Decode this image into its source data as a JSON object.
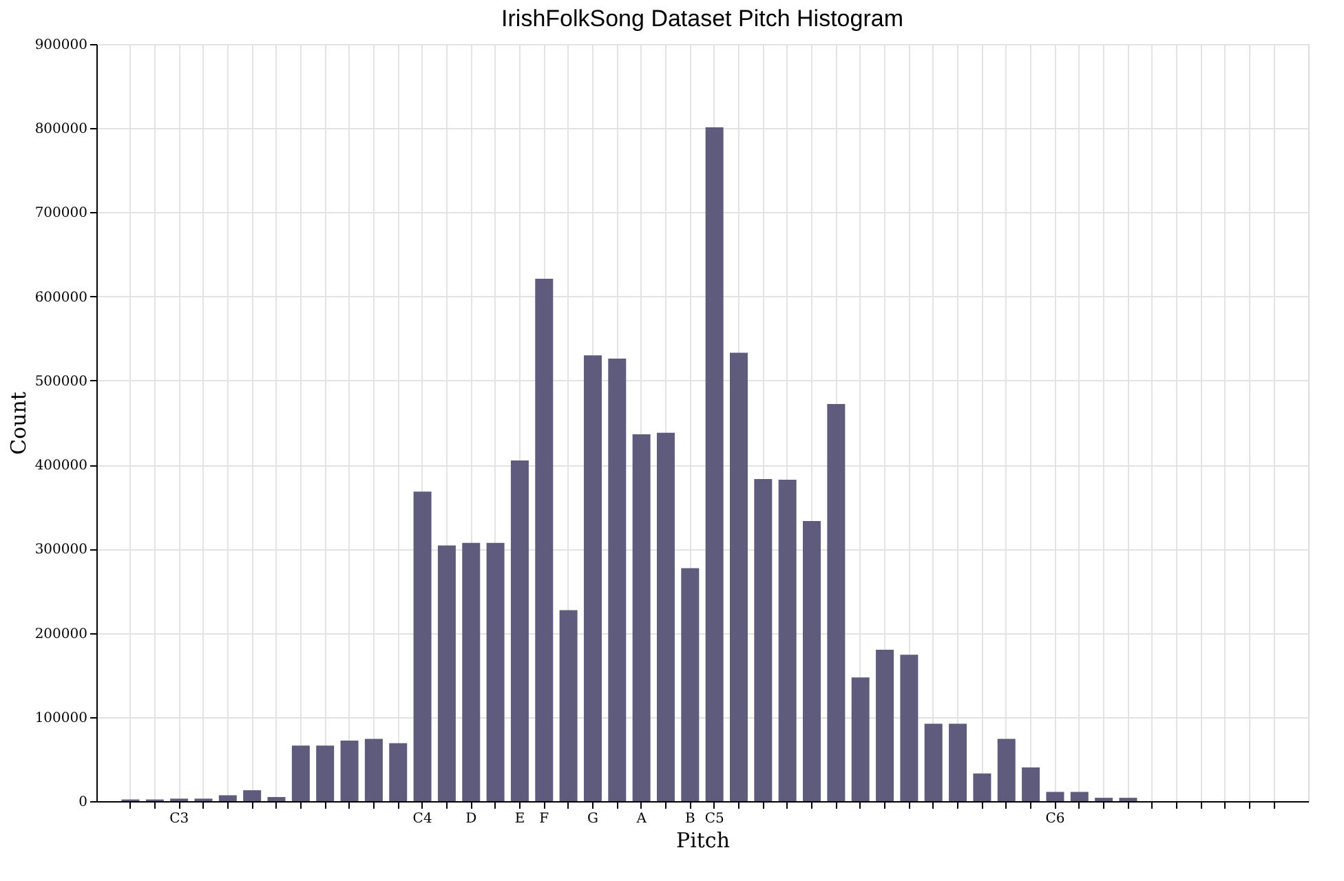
{
  "chart_data": {
    "type": "bar",
    "title": "IrishFolkSong Dataset Pitch Histogram",
    "xlabel": "Pitch",
    "ylabel": "Count",
    "categories": [
      null,
      null,
      "C3",
      null,
      null,
      null,
      null,
      null,
      null,
      null,
      null,
      null,
      "C4",
      null,
      "D",
      null,
      "E",
      "F",
      null,
      "G",
      null,
      "A",
      null,
      "B",
      "C5",
      null,
      null,
      null,
      null,
      null,
      null,
      null,
      null,
      null,
      null,
      null,
      null,
      null,
      "C6",
      null,
      null,
      null,
      null,
      null,
      null,
      null,
      null,
      null
    ],
    "values": [
      2000,
      2000,
      3000,
      3000,
      7000,
      13000,
      5000,
      66000,
      66000,
      72000,
      74000,
      69000,
      368000,
      304000,
      307000,
      307000,
      405000,
      621000,
      227000,
      530000,
      526000,
      436000,
      438000,
      277000,
      801000,
      533000,
      383000,
      382000,
      333000,
      472000,
      147000,
      180000,
      174000,
      92000,
      92000,
      33000,
      74000,
      40000,
      11000,
      11000,
      4000,
      4000,
      0,
      0,
      0,
      0,
      0,
      0
    ],
    "color": "#5f5b7d",
    "ylim": [
      0,
      900000
    ],
    "yticks": [
      0,
      100000,
      200000,
      300000,
      400000,
      500000,
      600000,
      700000,
      800000,
      900000
    ],
    "grid": true
  }
}
